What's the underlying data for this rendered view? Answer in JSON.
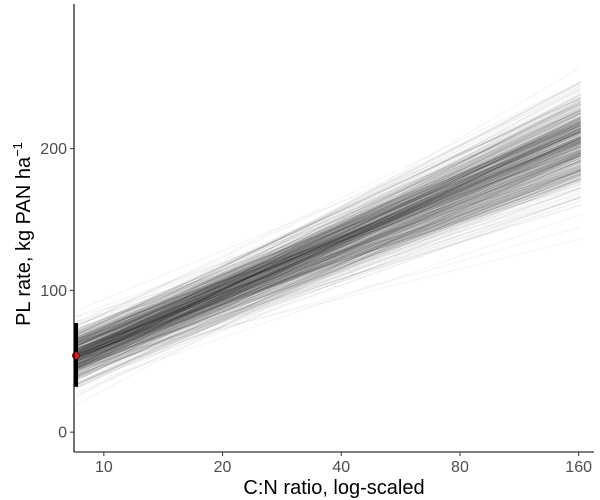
{
  "chart_data": {
    "type": "line",
    "title": "",
    "xlabel": "C:N ratio, log-scaled",
    "ylabel": "PL rate, kg PAN ha",
    "ylabel_superscript": "−1",
    "x_scale": "log2",
    "xlim": [
      8.4,
      175
    ],
    "ylim": [
      -14,
      302
    ],
    "x_ticks": [
      10,
      20,
      40,
      80,
      160
    ],
    "y_ticks": [
      0,
      100,
      200
    ],
    "grid": false,
    "legend": "none",
    "line_color": "#000000",
    "x_range": [
      8.5,
      162
    ],
    "posterior_lines": {
      "count": 600,
      "y_at_x_start": {
        "mean": 54,
        "sd": 10
      },
      "y_at_x_end": {
        "mean": 205,
        "sd": 17
      }
    },
    "marker": {
      "x": 8.5,
      "y": 54,
      "interval": [
        32,
        77
      ],
      "point_color": "#cc1f1f",
      "bar_color": "#000000"
    }
  }
}
